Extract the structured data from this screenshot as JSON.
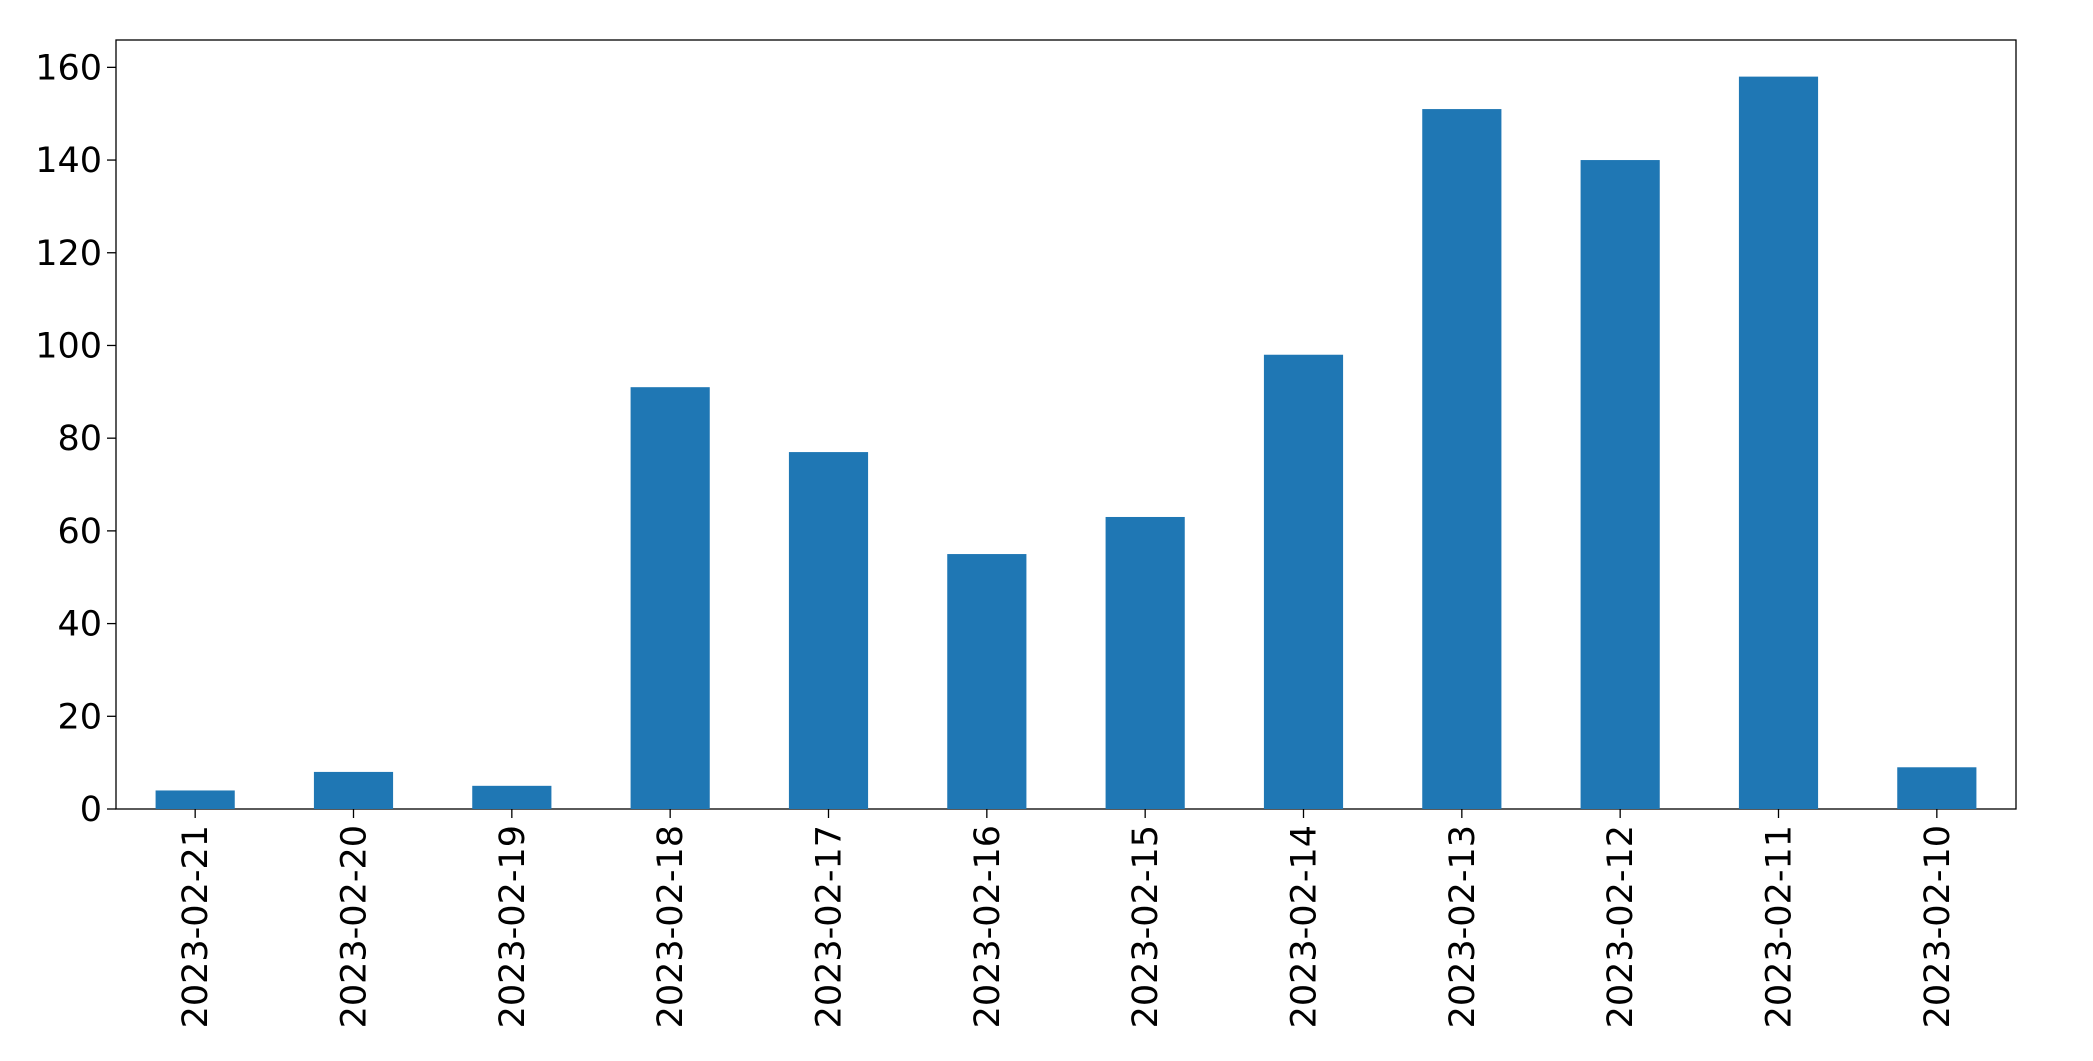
{
  "chart_data": {
    "type": "bar",
    "categories": [
      "2023-02-21",
      "2023-02-20",
      "2023-02-19",
      "2023-02-18",
      "2023-02-17",
      "2023-02-16",
      "2023-02-15",
      "2023-02-14",
      "2023-02-13",
      "2023-02-12",
      "2023-02-11",
      "2023-02-10"
    ],
    "values": [
      4,
      8,
      5,
      91,
      77,
      55,
      63,
      98,
      151,
      140,
      158,
      9
    ],
    "color": "#1f77b4",
    "ylim": [
      0,
      165.9
    ],
    "yticks": [
      0,
      20,
      40,
      60,
      80,
      100,
      120,
      140,
      160
    ],
    "grid": false
  }
}
